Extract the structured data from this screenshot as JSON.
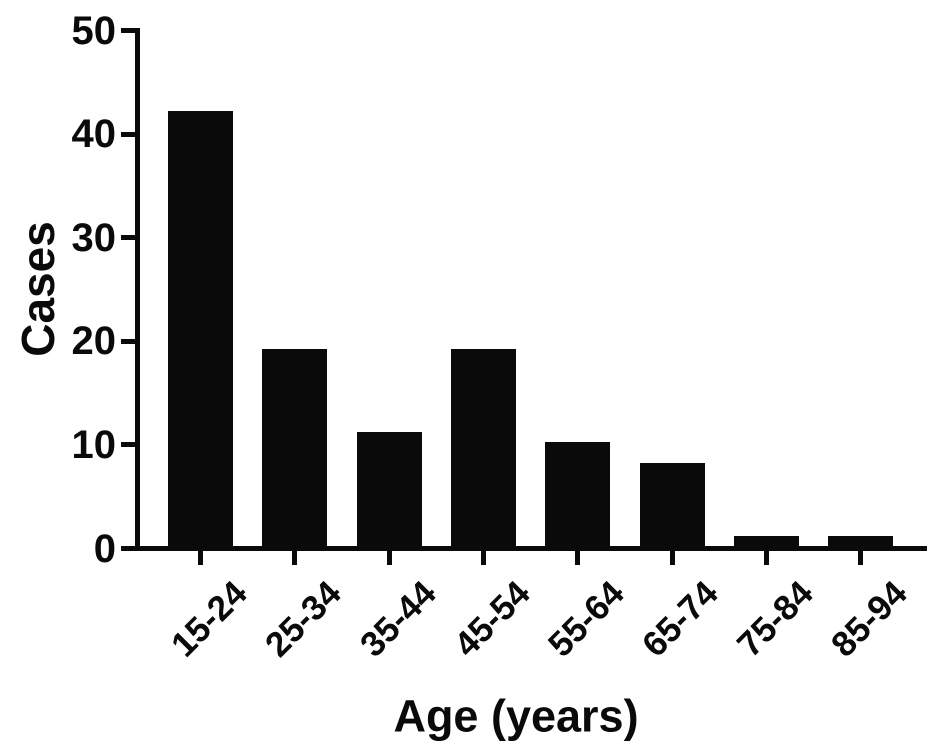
{
  "chart_data": {
    "type": "bar",
    "categories": [
      "15-24",
      "25-34",
      "35-44",
      "45-54",
      "55-64",
      "65-74",
      "75-84",
      "85-94"
    ],
    "values": [
      42,
      19,
      11,
      19,
      10,
      8,
      1,
      1
    ],
    "title": "",
    "xlabel": "Age (years)",
    "ylabel": "Cases",
    "ylim": [
      0,
      50
    ],
    "yticks": [
      0,
      10,
      20,
      30,
      40,
      50
    ],
    "bar_color": "#0a0a0a",
    "axis_color": "#0a0a0a",
    "background_color": "#ffffff",
    "grid": false,
    "legend_position": "none"
  }
}
